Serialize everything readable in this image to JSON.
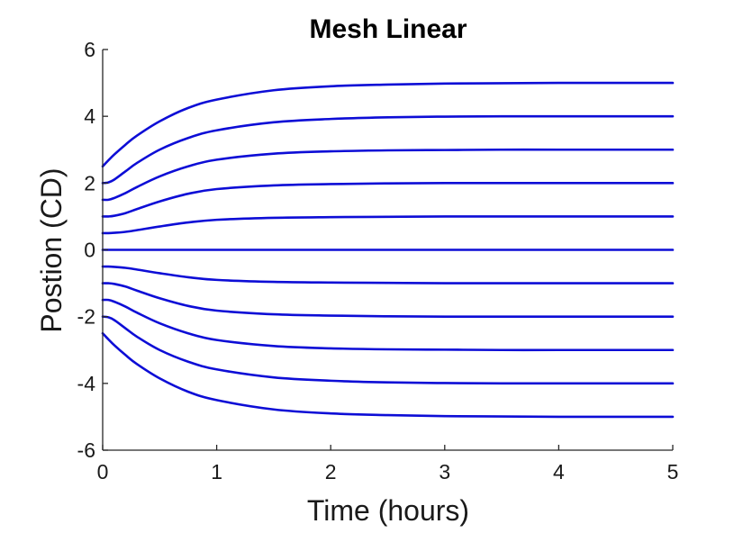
{
  "chart_data": {
    "type": "line",
    "title": "Mesh Linear",
    "xlabel": "Time (hours)",
    "ylabel": "Postion (CD)",
    "xlim": [
      0,
      5
    ],
    "ylim": [
      -6,
      6
    ],
    "xticks": [
      0,
      1,
      2,
      3,
      4,
      5
    ],
    "xtick_labels": [
      "0",
      "1",
      "2",
      "3",
      "4",
      "5"
    ],
    "yticks": [
      -6,
      -4,
      -2,
      0,
      2,
      4,
      6
    ],
    "ytick_labels": [
      "-6",
      "-4",
      "-2",
      "0",
      "2",
      "4",
      "6"
    ],
    "grid": false,
    "legend": "none",
    "line_color": "#0d0dd6",
    "x": [
      0,
      0.05,
      0.1,
      0.2,
      0.3,
      0.5,
      0.75,
      1.0,
      1.5,
      2.0,
      2.5,
      3.0,
      3.5,
      4.0,
      4.5,
      5.0
    ],
    "series": [
      {
        "values": [
          2.5,
          2.68,
          2.85,
          3.15,
          3.42,
          3.85,
          4.25,
          4.5,
          4.78,
          4.9,
          4.95,
          4.98,
          4.99,
          5.0,
          5.0,
          5.0
        ]
      },
      {
        "values": [
          2.0,
          2.02,
          2.1,
          2.35,
          2.6,
          3.0,
          3.35,
          3.58,
          3.82,
          3.92,
          3.97,
          3.99,
          4.0,
          4.0,
          4.0,
          4.0
        ]
      },
      {
        "values": [
          1.5,
          1.5,
          1.55,
          1.7,
          1.88,
          2.2,
          2.5,
          2.7,
          2.88,
          2.95,
          2.98,
          2.99,
          3.0,
          3.0,
          3.0,
          3.0
        ]
      },
      {
        "values": [
          1.0,
          1.0,
          1.02,
          1.1,
          1.22,
          1.45,
          1.68,
          1.82,
          1.93,
          1.97,
          1.99,
          2.0,
          2.0,
          2.0,
          2.0,
          2.0
        ]
      },
      {
        "values": [
          0.5,
          0.5,
          0.51,
          0.54,
          0.59,
          0.7,
          0.82,
          0.9,
          0.96,
          0.98,
          0.99,
          1.0,
          1.0,
          1.0,
          1.0,
          1.0
        ]
      },
      {
        "values": [
          0,
          0,
          0,
          0,
          0,
          0,
          0,
          0,
          0,
          0,
          0,
          0,
          0,
          0,
          0,
          0
        ]
      },
      {
        "values": [
          -0.5,
          -0.5,
          -0.51,
          -0.54,
          -0.59,
          -0.7,
          -0.82,
          -0.9,
          -0.96,
          -0.98,
          -0.99,
          -1.0,
          -1.0,
          -1.0,
          -1.0,
          -1.0
        ]
      },
      {
        "values": [
          -1.0,
          -1.0,
          -1.02,
          -1.1,
          -1.22,
          -1.45,
          -1.68,
          -1.82,
          -1.93,
          -1.97,
          -1.99,
          -2.0,
          -2.0,
          -2.0,
          -2.0,
          -2.0
        ]
      },
      {
        "values": [
          -1.5,
          -1.5,
          -1.55,
          -1.7,
          -1.88,
          -2.2,
          -2.5,
          -2.7,
          -2.88,
          -2.95,
          -2.98,
          -2.99,
          -3.0,
          -3.0,
          -3.0,
          -3.0
        ]
      },
      {
        "values": [
          -2.0,
          -2.02,
          -2.1,
          -2.35,
          -2.6,
          -3.0,
          -3.35,
          -3.58,
          -3.82,
          -3.92,
          -3.97,
          -3.99,
          -4.0,
          -4.0,
          -4.0,
          -4.0
        ]
      },
      {
        "values": [
          -2.5,
          -2.68,
          -2.85,
          -3.15,
          -3.42,
          -3.85,
          -4.25,
          -4.5,
          -4.78,
          -4.9,
          -4.95,
          -4.98,
          -4.99,
          -5.0,
          -5.0,
          -5.0
        ]
      }
    ]
  }
}
